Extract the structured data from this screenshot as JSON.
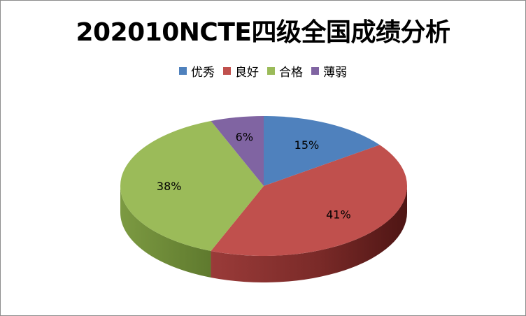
{
  "chart_data": {
    "type": "pie",
    "title": "202010NCTE四级全国成绩分析",
    "legend_position": "top",
    "categories": [
      "优秀",
      "良好",
      "合格",
      "薄弱"
    ],
    "values": [
      15,
      41,
      38,
      6
    ],
    "labels": [
      "15%",
      "41%",
      "38%",
      "6%"
    ],
    "colors": [
      "#4f81bd",
      "#c0504d",
      "#9bbb59",
      "#8064a2"
    ]
  }
}
